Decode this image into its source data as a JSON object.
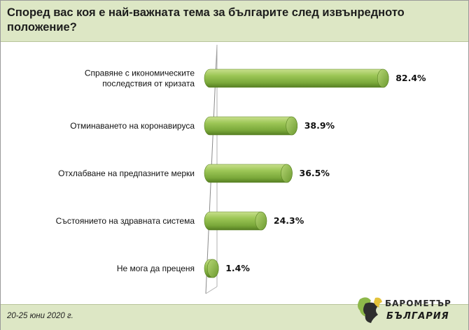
{
  "title": "Според вас коя е най-важната тема за българите след извънредното положение?",
  "footer": {
    "date": "20-25 юни 2020 г."
  },
  "logo": {
    "line1": "БАРОМЕТЪР",
    "line2": "БЪЛГАРИЯ"
  },
  "colors": {
    "bar": "#8db84a",
    "bar_dark": "#5f8a2a",
    "header_bg": "#dde7c5"
  },
  "chart_data": {
    "type": "bar",
    "orientation": "horizontal",
    "style": "3d-cylinder",
    "categories": [
      [
        "Справяне с икономическите",
        "последствия от кризата"
      ],
      [
        "Отминаването на коронавируса"
      ],
      [
        "Отхлабване на предпазните мерки"
      ],
      [
        "Състоянието на здравната система"
      ],
      [
        "Не мога да преценя"
      ]
    ],
    "values": [
      82.4,
      38.9,
      36.5,
      24.3,
      1.4
    ],
    "value_labels": [
      "82.4%",
      "38.9%",
      "36.5%",
      "24.3%",
      "1.4%"
    ],
    "xlim": [
      0,
      100
    ],
    "grid": false,
    "legend": "none"
  }
}
